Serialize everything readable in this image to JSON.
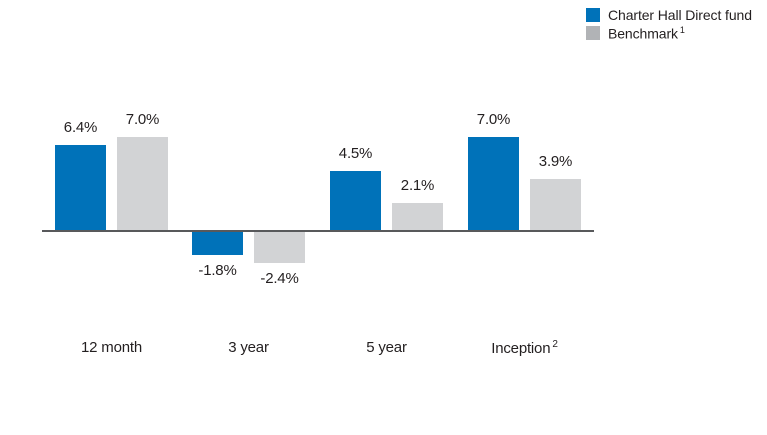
{
  "chart_data": {
    "type": "bar",
    "title": "",
    "categories": [
      "12 month",
      "3 year",
      "5 year",
      "Inception"
    ],
    "category_superscripts": [
      "",
      "",
      "",
      "2"
    ],
    "series": [
      {
        "name": "Charter Hall Direct fund",
        "color": "#0072b9",
        "values": [
          6.4,
          -1.8,
          4.5,
          7.0
        ],
        "labels": [
          "6.4%",
          "-1.8%",
          "4.5%",
          "7.0%"
        ]
      },
      {
        "name": "Benchmark",
        "color": "#d2d3d5",
        "values": [
          7.0,
          -2.4,
          2.1,
          3.9
        ],
        "labels": [
          "7.0%",
          "-2.4%",
          "2.1%",
          "3.9%"
        ]
      }
    ],
    "xlabel": "",
    "ylabel": "",
    "grid": false,
    "legend_position": "top-right",
    "axis_color": "#58595b",
    "text_color": "#231f20"
  },
  "legend": {
    "items": [
      {
        "label": "Charter Hall Direct fund",
        "superscript": "",
        "color": "#0072b9"
      },
      {
        "label": "Benchmark",
        "superscript": "1",
        "color": "#b1b3b6"
      }
    ]
  }
}
